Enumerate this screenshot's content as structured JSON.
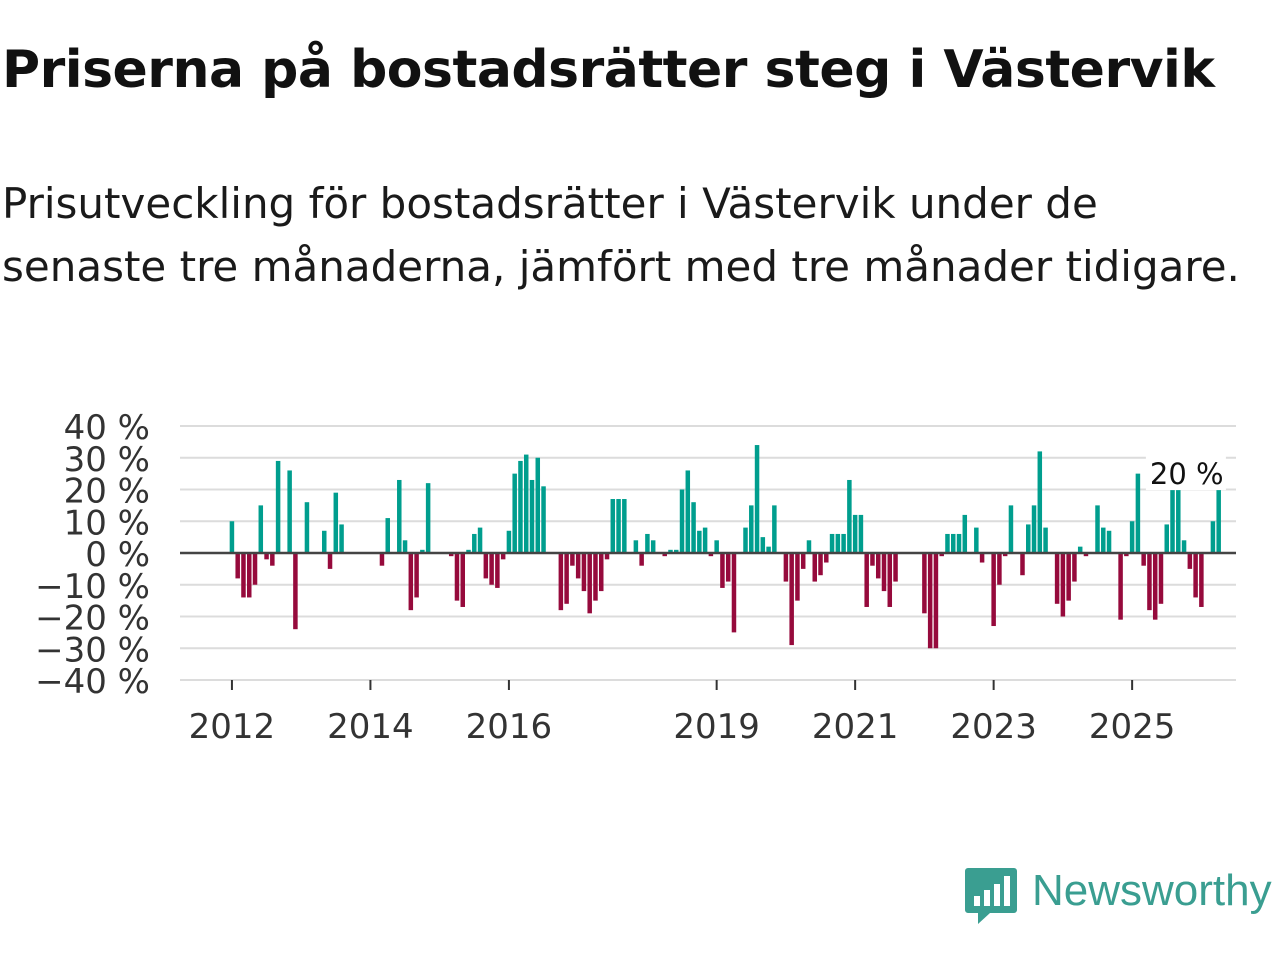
{
  "header": {
    "title": "Priserna på bostadsrätter steg i Västervik",
    "subtitle": "Prisutveckling för bostadsrätter i Västervik under de senaste tre månaderna, jämfört med tre månader tidigare."
  },
  "branding": {
    "name": "Newsworthy"
  },
  "colors": {
    "positive": "#009e8e",
    "negative": "#960a3c",
    "grid": "#dcdcdc",
    "zero": "#444444",
    "brand": "#3a9e91"
  },
  "chart_data": {
    "type": "bar",
    "title": "Priserna på bostadsrätter steg i Västervik",
    "ylabel": "",
    "xlabel": "",
    "ylim": [
      -40,
      40
    ],
    "y_ticks": [
      40,
      30,
      20,
      10,
      0,
      -10,
      -20,
      -30,
      -40
    ],
    "y_tick_labels": [
      "40 %",
      "30 %",
      "20 %",
      "10 %",
      "0 %",
      "−10 %",
      "−20 %",
      "−30 %",
      "−40 %"
    ],
    "x_ticks": [
      2012,
      2014,
      2016,
      2019,
      2021,
      2023,
      2025
    ],
    "x_tick_labels": [
      "2012",
      "2014",
      "2016",
      "2019",
      "2021",
      "2023",
      "2025"
    ],
    "x_range": [
      2011.25,
      2026.5
    ],
    "annotation": {
      "label": "20 %",
      "x": 2025.17,
      "y": 28
    },
    "series": [
      {
        "name": "Prisutveckling",
        "x_start": 2012.0,
        "x_step": 0.0833333,
        "values": [
          10,
          -8,
          -14,
          -14,
          -10,
          15,
          -2,
          -4,
          29,
          0,
          26,
          -24,
          0,
          16,
          0,
          0,
          7,
          -5,
          19,
          9,
          0,
          0,
          0,
          0,
          0,
          0,
          -4,
          11,
          0,
          23,
          4,
          -18,
          -14,
          1,
          22,
          0,
          0,
          0,
          -1,
          -15,
          -17,
          1,
          6,
          8,
          -8,
          -10,
          -11,
          -2,
          7,
          25,
          29,
          31,
          23,
          30,
          21,
          0,
          0,
          -18,
          -16,
          -4,
          -8,
          -12,
          -19,
          -15,
          -12,
          -2,
          17,
          17,
          17,
          0,
          4,
          -4,
          6,
          4,
          0,
          -1,
          1,
          1,
          20,
          26,
          16,
          7,
          8,
          -1,
          4,
          -11,
          -9,
          -25,
          0,
          8,
          15,
          34,
          5,
          2,
          15,
          0,
          -9,
          -29,
          -15,
          -5,
          4,
          -9,
          -7,
          -3,
          6,
          6,
          6,
          23,
          12,
          12,
          -17,
          -4,
          -8,
          -12,
          -17,
          -9,
          0,
          0,
          0,
          0,
          -19,
          -30,
          -30,
          -1,
          6,
          6,
          6,
          12,
          0,
          8,
          -3,
          0,
          -23,
          -10,
          -1,
          15,
          0,
          -7,
          9,
          15,
          32,
          8,
          0,
          -16,
          -20,
          -15,
          -9,
          2,
          -1,
          0,
          15,
          8,
          7,
          0,
          -21,
          -1,
          10,
          25,
          -4,
          -18,
          -21,
          -16,
          9,
          21,
          28,
          4,
          -5,
          -14,
          -17,
          0,
          10,
          20
        ]
      }
    ]
  }
}
